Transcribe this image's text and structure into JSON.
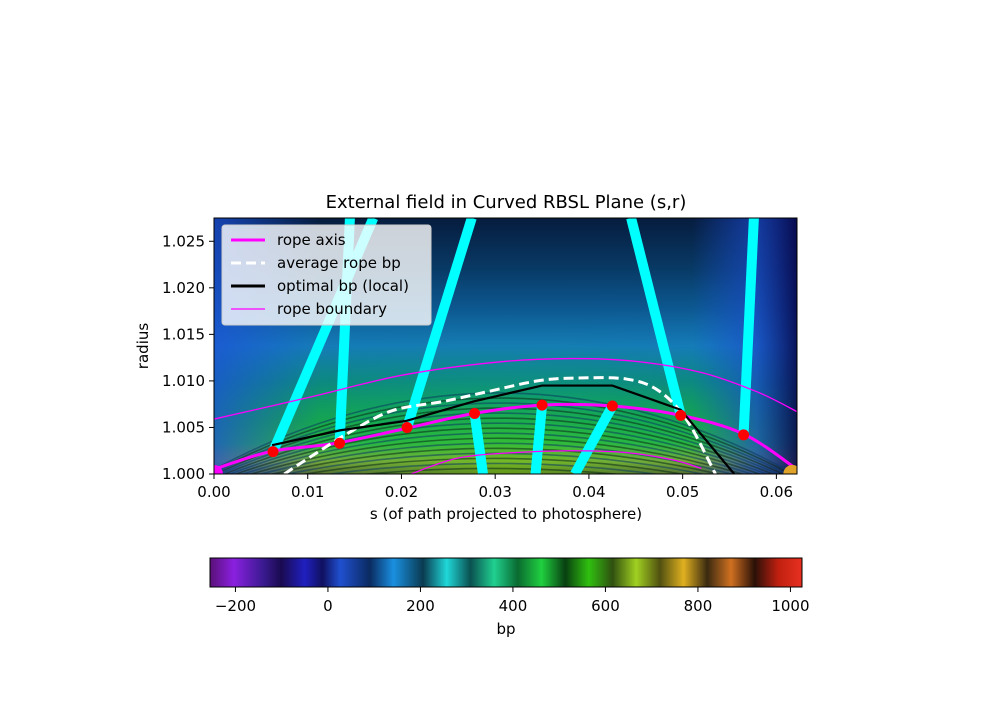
{
  "chart_data": {
    "type": "heatmap",
    "title": "External field in Curved RBSL Plane (s,r)",
    "xlabel": "s (of path projected to photosphere)",
    "ylabel": "radius",
    "xlim": [
      0.0,
      0.0622
    ],
    "ylim": [
      1.0,
      1.0275
    ],
    "xticks": [
      "0.00",
      "0.01",
      "0.02",
      "0.03",
      "0.04",
      "0.05",
      "0.06"
    ],
    "xtick_values": [
      0.0,
      0.01,
      0.02,
      0.03,
      0.04,
      0.05,
      0.06
    ],
    "yticks": [
      "1.000",
      "1.005",
      "1.010",
      "1.015",
      "1.020",
      "1.025"
    ],
    "ytick_values": [
      1.0,
      1.005,
      1.01,
      1.015,
      1.02,
      1.025
    ],
    "colorbar": {
      "label": "bp",
      "ticks": [
        "−200",
        "0",
        "200",
        "400",
        "600",
        "800",
        "1000"
      ],
      "tick_values": [
        -200,
        0,
        200,
        400,
        600,
        800,
        1000
      ],
      "range": [
        -255,
        1025
      ]
    },
    "legend": {
      "placement": "upper-left",
      "entries": [
        {
          "label": "rope axis",
          "color": "#ff00ff",
          "style": "solid"
        },
        {
          "label": "average rope bp",
          "color": "#ffffff",
          "style": "dashed"
        },
        {
          "label": "optimal bp (local)",
          "color": "#000000",
          "style": "solid"
        },
        {
          "label": "rope boundary",
          "color": "#ff00ff",
          "style": "thin"
        }
      ]
    },
    "series": [
      {
        "name": "rope axis",
        "color": "#ff00ff",
        "x": [
          0.0,
          0.006,
          0.013,
          0.0205,
          0.0277,
          0.035,
          0.0425,
          0.0498,
          0.0565,
          0.0622
        ],
        "y": [
          1.0005,
          1.0024,
          1.0033,
          1.0049,
          1.0065,
          1.0074,
          1.0073,
          1.0063,
          1.0043,
          1.0005
        ]
      },
      {
        "name": "rope boundary",
        "color": "#ff00ff",
        "x": [
          0.0,
          0.01,
          0.02,
          0.03,
          0.038,
          0.045,
          0.052,
          0.058,
          0.0622
        ],
        "y": [
          1.0059,
          1.0082,
          1.0106,
          1.012,
          1.0124,
          1.0121,
          1.0109,
          1.0088,
          1.0067
        ]
      },
      {
        "name": "rope boundary (lower)",
        "color": "#ff00ff",
        "x": [
          0.021,
          0.026,
          0.032,
          0.038,
          0.044,
          0.049,
          0.052
        ],
        "y": [
          1.0,
          1.0017,
          1.0023,
          1.0025,
          1.0023,
          1.0015,
          1.0006
        ]
      },
      {
        "name": "average rope bp",
        "color": "#ffffff",
        "x": [
          0.0075,
          0.011,
          0.0145,
          0.019,
          0.0245,
          0.029,
          0.0345,
          0.0385,
          0.044,
          0.0475,
          0.0505,
          0.0535
        ],
        "y": [
          1.0,
          1.0023,
          1.0045,
          1.0068,
          1.0078,
          1.0088,
          1.01,
          1.0103,
          1.0102,
          1.0089,
          1.0057,
          1.0
        ]
      },
      {
        "name": "optimal bp (local)",
        "color": "#000000",
        "x": [
          0.0062,
          0.0135,
          0.0205,
          0.0277,
          0.035,
          0.0425,
          0.0498,
          0.0555
        ],
        "y": [
          1.0031,
          1.0047,
          1.0057,
          1.0078,
          1.0095,
          1.0095,
          1.0069,
          1.0
        ]
      }
    ],
    "points": {
      "color": "#ff0000",
      "x": [
        0.0063,
        0.0134,
        0.0206,
        0.0278,
        0.035,
        0.0425,
        0.0498,
        0.0565
      ],
      "y": [
        1.0024,
        1.0033,
        1.005,
        1.0065,
        1.0074,
        1.0073,
        1.0063,
        1.0042
      ]
    },
    "end_markers": [
      {
        "x": 0.0,
        "y": 1.0,
        "color": "#ff00ff"
      },
      {
        "x": 0.0617,
        "y": 1.0,
        "color": "#e0a32a"
      }
    ],
    "field_lines": {
      "color": "#00ffff",
      "lines": [
        {
          "x1": 0.0063,
          "y1": 1.0024,
          "x2": 0.017,
          "y2": 1.0275
        },
        {
          "x1": 0.0134,
          "y1": 1.0033,
          "x2": 0.0145,
          "y2": 1.0275
        },
        {
          "x1": 0.0206,
          "y1": 1.005,
          "x2": 0.0275,
          "y2": 1.0275
        },
        {
          "x1": 0.0278,
          "y1": 1.0065,
          "x2": 0.0287,
          "y2": 1.0
        },
        {
          "x1": 0.035,
          "y1": 1.0074,
          "x2": 0.0343,
          "y2": 1.0
        },
        {
          "x1": 0.0425,
          "y1": 1.0073,
          "x2": 0.0385,
          "y2": 1.0
        },
        {
          "x1": 0.0498,
          "y1": 1.0063,
          "x2": 0.0445,
          "y2": 1.0275
        },
        {
          "x1": 0.0565,
          "y1": 1.0042,
          "x2": 0.0576,
          "y2": 1.0275
        }
      ]
    }
  }
}
